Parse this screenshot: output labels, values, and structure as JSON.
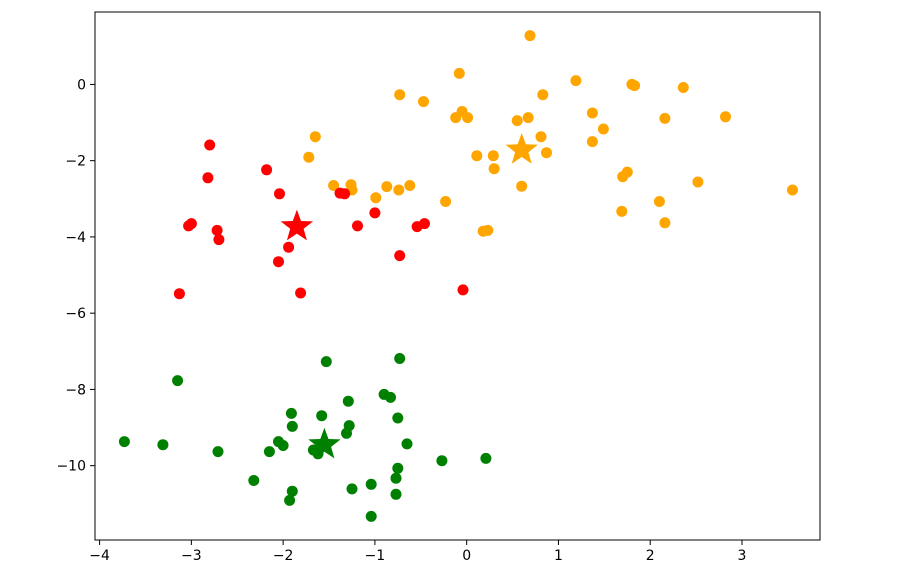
{
  "chart_data": {
    "type": "scatter",
    "title": "",
    "xlabel": "",
    "ylabel": "",
    "xlim": [
      -4.05,
      3.85
    ],
    "ylim": [
      -11.95,
      1.9
    ],
    "grid": false,
    "xticks": [
      -4,
      -3,
      -2,
      -1,
      0,
      1,
      2,
      3
    ],
    "yticks": [
      0,
      -2,
      -4,
      -6,
      -8,
      -10
    ],
    "series": [
      {
        "color": "#ffa500",
        "marker": "circle",
        "points": [
          [
            0.69,
            1.28
          ],
          [
            1.19,
            0.1
          ],
          [
            1.8,
            0.0
          ],
          [
            1.83,
            -0.03
          ],
          [
            2.36,
            -0.08
          ],
          [
            -0.08,
            0.29
          ],
          [
            -0.73,
            -0.27
          ],
          [
            -0.47,
            -0.45
          ],
          [
            0.83,
            -0.27
          ],
          [
            -0.05,
            -0.71
          ],
          [
            -0.12,
            -0.87
          ],
          [
            0.01,
            -0.87
          ],
          [
            0.55,
            -0.95
          ],
          [
            0.67,
            -0.87
          ],
          [
            1.37,
            -0.75
          ],
          [
            2.16,
            -0.89
          ],
          [
            2.82,
            -0.85
          ],
          [
            1.49,
            -1.17
          ],
          [
            -1.65,
            -1.37
          ],
          [
            0.81,
            -1.37
          ],
          [
            1.37,
            -1.5
          ],
          [
            0.11,
            -1.87
          ],
          [
            0.29,
            -1.87
          ],
          [
            0.87,
            -1.79
          ],
          [
            -1.72,
            -1.91
          ],
          [
            0.3,
            -2.21
          ],
          [
            1.75,
            -2.3
          ],
          [
            1.7,
            -2.42
          ],
          [
            2.52,
            -2.56
          ],
          [
            -1.45,
            -2.65
          ],
          [
            -1.26,
            -2.63
          ],
          [
            -0.87,
            -2.68
          ],
          [
            -0.62,
            -2.65
          ],
          [
            -1.25,
            -2.77
          ],
          [
            -0.74,
            -2.77
          ],
          [
            0.6,
            -2.67
          ],
          [
            3.55,
            -2.77
          ],
          [
            -0.99,
            -2.97
          ],
          [
            -0.23,
            -3.07
          ],
          [
            2.1,
            -3.07
          ],
          [
            1.69,
            -3.33
          ],
          [
            2.16,
            -3.63
          ],
          [
            0.18,
            -3.85
          ],
          [
            0.23,
            -3.83
          ]
        ]
      },
      {
        "color": "#ff0000",
        "marker": "circle",
        "points": [
          [
            -2.8,
            -1.59
          ],
          [
            -2.18,
            -2.24
          ],
          [
            -2.82,
            -2.45
          ],
          [
            -2.04,
            -2.87
          ],
          [
            -1.38,
            -2.85
          ],
          [
            -1.33,
            -2.87
          ],
          [
            -1.0,
            -3.37
          ],
          [
            -3.0,
            -3.65
          ],
          [
            -3.03,
            -3.71
          ],
          [
            -2.72,
            -3.83
          ],
          [
            -1.19,
            -3.71
          ],
          [
            -0.54,
            -3.73
          ],
          [
            -0.46,
            -3.65
          ],
          [
            -2.7,
            -4.07
          ],
          [
            -1.94,
            -4.27
          ],
          [
            -0.73,
            -4.49
          ],
          [
            -2.05,
            -4.65
          ],
          [
            -3.13,
            -5.49
          ],
          [
            -1.81,
            -5.47
          ],
          [
            -0.04,
            -5.39
          ]
        ]
      },
      {
        "color": "#008000",
        "marker": "circle",
        "points": [
          [
            -1.53,
            -7.27
          ],
          [
            -0.73,
            -7.19
          ],
          [
            -3.15,
            -7.77
          ],
          [
            -0.9,
            -8.13
          ],
          [
            -0.83,
            -8.21
          ],
          [
            -1.29,
            -8.31
          ],
          [
            -1.91,
            -8.63
          ],
          [
            -1.58,
            -8.69
          ],
          [
            -0.75,
            -8.75
          ],
          [
            -1.9,
            -8.97
          ],
          [
            -1.28,
            -8.95
          ],
          [
            -1.31,
            -9.15
          ],
          [
            -3.73,
            -9.37
          ],
          [
            -3.31,
            -9.45
          ],
          [
            -2.05,
            -9.37
          ],
          [
            -2.0,
            -9.47
          ],
          [
            -0.65,
            -9.43
          ],
          [
            -1.67,
            -9.59
          ],
          [
            -2.71,
            -9.63
          ],
          [
            -2.15,
            -9.63
          ],
          [
            -1.62,
            -9.69
          ],
          [
            -0.27,
            -9.87
          ],
          [
            0.21,
            -9.81
          ],
          [
            -0.75,
            -10.07
          ],
          [
            -0.77,
            -10.33
          ],
          [
            -2.32,
            -10.39
          ],
          [
            -1.25,
            -10.61
          ],
          [
            -1.04,
            -10.49
          ],
          [
            -1.9,
            -10.67
          ],
          [
            -1.93,
            -10.91
          ],
          [
            -0.77,
            -10.75
          ],
          [
            -1.04,
            -11.33
          ]
        ]
      }
    ],
    "centroids": [
      {
        "color": "#ffa500",
        "marker": "star",
        "x": 0.6,
        "y": -1.72
      },
      {
        "color": "#ff0000",
        "marker": "star",
        "x": -1.85,
        "y": -3.73
      },
      {
        "color": "#008000",
        "marker": "star",
        "x": -1.55,
        "y": -9.45
      }
    ]
  }
}
